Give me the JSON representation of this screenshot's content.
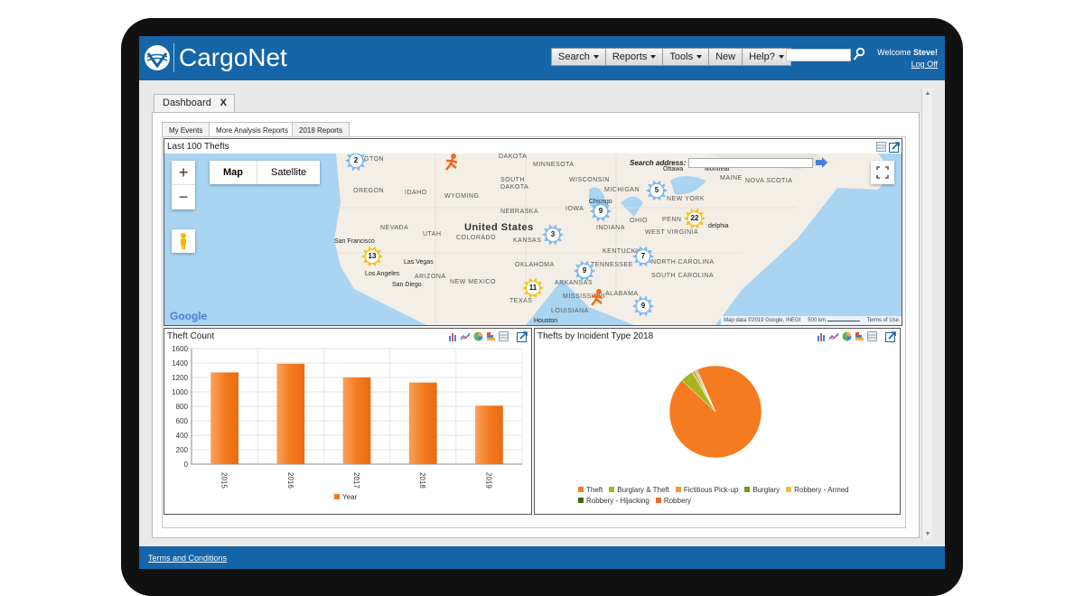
{
  "header": {
    "brand": "CargoNet",
    "nav": [
      {
        "label": "Search",
        "dropdown": true
      },
      {
        "label": "Reports",
        "dropdown": true
      },
      {
        "label": "Tools",
        "dropdown": true
      },
      {
        "label": "New",
        "dropdown": false
      },
      {
        "label": "Help?",
        "dropdown": true
      }
    ],
    "search_value": "",
    "welcome": "Welcome",
    "user": "Steve!",
    "logoff": "Log Off"
  },
  "dashboard": {
    "tab_label": "Dashboard",
    "close_label": "X",
    "subtabs": [
      "My Events",
      "More Analysis Reports",
      "2018 Reports"
    ]
  },
  "map_panel": {
    "title": "Last 100 Thefts",
    "map_label": "Map",
    "satellite_label": "Satellite",
    "zoom_in": "+",
    "zoom_out": "−",
    "search_address_label": "Search address:",
    "search_address_value": "",
    "country_label": "United States",
    "region_labels": [
      "DAKOTA",
      "MINNESOTA",
      "SOUTH DAKOTA",
      "WISCONSIN",
      "MICHIGAN",
      "OREGON",
      "IDAHO",
      "WYOMING",
      "NEBRASKA",
      "IOWA",
      "NEVADA",
      "UTAH",
      "COLORADO",
      "KANSAS",
      "INDIANA",
      "OHIO",
      "PENN",
      "NEW YORK",
      "MAINE",
      "NOVA SCOTIA",
      "ARIZONA",
      "NEW MEXICO",
      "OKLAHOMA",
      "KENTUCKY",
      "TENNESSEE",
      "NORTH CAROLINA",
      "SOUTH CAROLINA",
      "TEXAS",
      "MISSISSIPPI",
      "ALABAMA",
      "LOUISIANA",
      "WEST VIRGINIA",
      "ARKANSAS",
      "INGTON"
    ],
    "cities": [
      "San Francisco",
      "Las Vegas",
      "Los Angeles",
      "San Diego",
      "Chicago",
      "Ottawa",
      "Montreal",
      "delphia",
      "Houston"
    ],
    "clusters": [
      "2",
      "5",
      "9",
      "22",
      "13",
      "3",
      "7",
      "9",
      "11",
      "9"
    ],
    "attribution": "Map data ©2019 Google, INEGI",
    "scale": "500 km",
    "terms": "Terms of Use",
    "google": "Google"
  },
  "theft_count": {
    "title": "Theft Count",
    "legend": "Year",
    "bar_color": "#f47b20"
  },
  "incident_type": {
    "title": "Thefts by Incident Type 2018",
    "legend": [
      {
        "name": "Theft",
        "color": "#f47b20"
      },
      {
        "name": "Burglary & Theft",
        "color": "#a6b51d"
      },
      {
        "name": "Fictitious Pick-up",
        "color": "#f39a2b"
      },
      {
        "name": "Burglary",
        "color": "#6f9a12"
      },
      {
        "name": "Robbery - Armed",
        "color": "#e6c23a"
      },
      {
        "name": "Robbery - Hijacking",
        "color": "#3e6a12"
      },
      {
        "name": "Robbery",
        "color": "#f06a1e"
      }
    ]
  },
  "chart_data": [
    {
      "type": "bar",
      "title": "Theft Count",
      "categories": [
        "2015",
        "2016",
        "2017",
        "2018",
        "2019"
      ],
      "series": [
        {
          "name": "Year",
          "values": [
            1270,
            1390,
            1200,
            1130,
            810
          ]
        }
      ],
      "ylim": [
        0,
        1600
      ],
      "yticks": [
        0,
        200,
        400,
        600,
        800,
        1000,
        1200,
        1400,
        1600
      ],
      "grid": true,
      "legend_position": "bottom"
    },
    {
      "type": "pie",
      "title": "Thefts by Incident Type 2018",
      "labels": [
        "Theft",
        "Burglary & Theft",
        "Fictitious Pick-up",
        "Burglary",
        "Robbery - Armed",
        "Robbery - Hijacking",
        "Robbery"
      ],
      "values": [
        93.5,
        4.5,
        0.5,
        0.5,
        0.4,
        0.3,
        0.3
      ],
      "legend_position": "bottom"
    }
  ],
  "footer": {
    "terms": "Terms and Conditions"
  }
}
